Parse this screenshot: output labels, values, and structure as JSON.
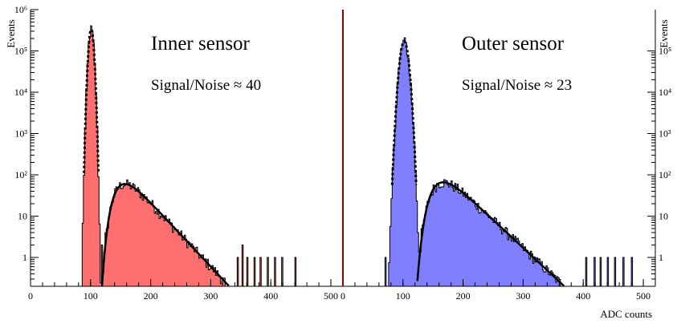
{
  "colors": {
    "inner_fill": "#ff6f6f",
    "outer_fill": "#7f7fff",
    "hist_line": "#000000",
    "divider": "#8b0000",
    "axis": "#000000",
    "fit_line": "#000000"
  },
  "chart_data": [
    {
      "type": "histogram",
      "panel": "inner",
      "title": "Inner sensor",
      "annotation": "Signal/Noise ≈ 40",
      "ylabel": "Events",
      "xlabel": "",
      "xlim": [
        0,
        520
      ],
      "ylim": [
        0.2,
        1000000
      ],
      "log_y": true,
      "x_ticks": [
        "0",
        "100",
        "200",
        "300",
        "400",
        "500"
      ],
      "y_ticks": [
        "1",
        "10",
        "10²",
        "10³",
        "10⁴",
        "10⁵",
        "10⁶"
      ],
      "fill_color": "#ff6f6f",
      "pedestal": {
        "mean": 101,
        "sigma": 3.0,
        "peak": 330000
      },
      "signal": {
        "mpv": 157,
        "peak": 60,
        "width": 14,
        "tail_end": 410
      },
      "noise_hits": [
        {
          "x": 94,
          "y": 1
        },
        {
          "x": 92,
          "y": 2
        },
        {
          "x": 112,
          "y": 3
        },
        {
          "x": 118,
          "y": 2
        },
        {
          "x": 124,
          "y": 4
        },
        {
          "x": 130,
          "y": 3
        },
        {
          "x": 136,
          "y": 8
        },
        {
          "x": 142,
          "y": 7
        },
        {
          "x": 345,
          "y": 1
        },
        {
          "x": 352,
          "y": 2
        },
        {
          "x": 360,
          "y": 1
        },
        {
          "x": 372,
          "y": 1
        },
        {
          "x": 383,
          "y": 1
        },
        {
          "x": 395,
          "y": 1
        },
        {
          "x": 407,
          "y": 1
        },
        {
          "x": 419,
          "y": 1
        },
        {
          "x": 440,
          "y": 1
        }
      ]
    },
    {
      "type": "histogram",
      "panel": "outer",
      "title": "Outer sensor",
      "annotation": "Signal/Noise ≈ 23",
      "ylabel": "Events",
      "xlabel": "ADC counts",
      "xlim": [
        0,
        520
      ],
      "ylim": [
        0.2,
        1000000
      ],
      "log_y": true,
      "x_ticks": [
        "0",
        "100",
        "200",
        "300",
        "400",
        "500"
      ],
      "y_ticks": [
        "1",
        "10",
        "10²",
        "10³",
        "10⁴",
        "10⁵"
      ],
      "fill_color": "#7f7fff",
      "pedestal": {
        "mean": 102,
        "sigma": 5.0,
        "peak": 170000
      },
      "signal": {
        "mpv": 167,
        "peak": 66,
        "width": 16,
        "tail_end": 465
      },
      "noise_hits": [
        {
          "x": 70,
          "y": 1
        },
        {
          "x": 78,
          "y": 1
        },
        {
          "x": 84,
          "y": 1
        },
        {
          "x": 88,
          "y": 2
        },
        {
          "x": 118,
          "y": 2
        },
        {
          "x": 124,
          "y": 4
        },
        {
          "x": 130,
          "y": 5
        },
        {
          "x": 136,
          "y": 3
        },
        {
          "x": 142,
          "y": 6
        },
        {
          "x": 146,
          "y": 10
        },
        {
          "x": 405,
          "y": 1
        },
        {
          "x": 418,
          "y": 1
        },
        {
          "x": 428,
          "y": 1
        },
        {
          "x": 441,
          "y": 1
        },
        {
          "x": 452,
          "y": 1
        },
        {
          "x": 466,
          "y": 1
        },
        {
          "x": 480,
          "y": 1
        }
      ]
    }
  ]
}
